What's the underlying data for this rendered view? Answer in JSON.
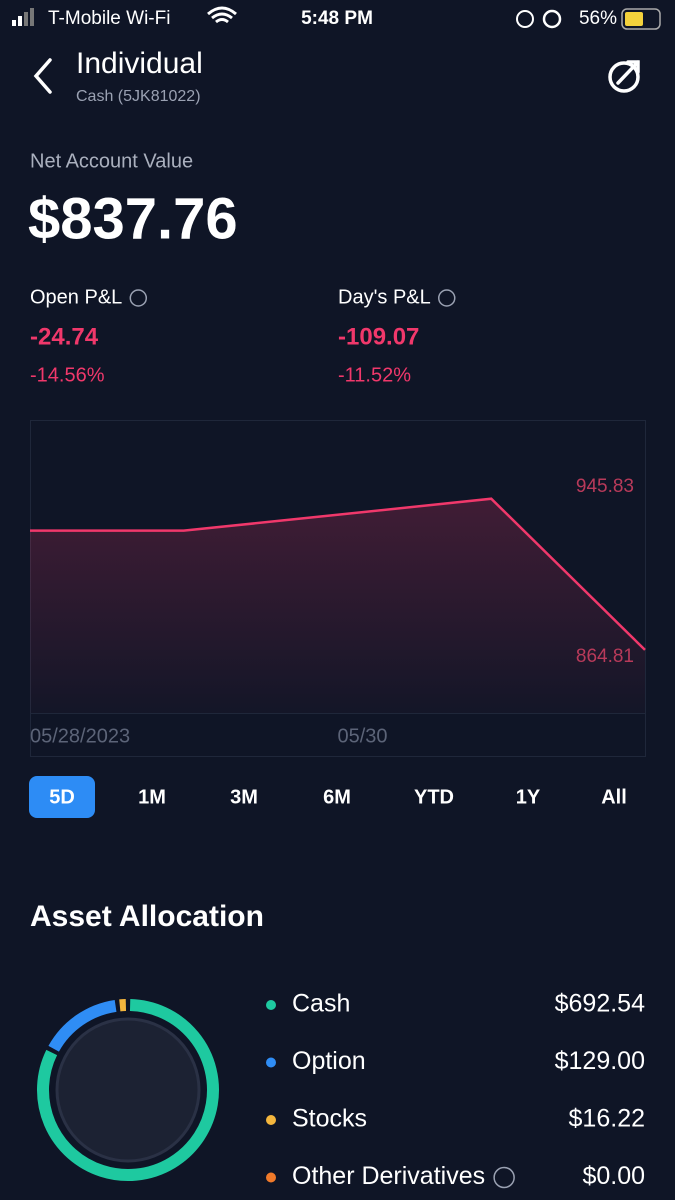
{
  "status_bar": {
    "carrier": "T-Mobile Wi-Fi",
    "time": "5:48 PM",
    "battery": "56%"
  },
  "header": {
    "title": "Individual",
    "subtitle": "Cash (5JK81022)"
  },
  "account": {
    "label": "Net Account Value",
    "value": "$837.76"
  },
  "pnl": [
    {
      "label": "Open P&L",
      "amount": "-24.74",
      "percent": "-14.56%"
    },
    {
      "label": "Day's P&L",
      "amount": "-109.07",
      "percent": "-11.52%"
    }
  ],
  "chart_data": [
    {
      "type": "line",
      "categories": [
        "05/28/2023",
        null,
        "05/30",
        null,
        null
      ],
      "values": [
        928.7,
        928.7,
        937.2,
        945.83,
        864.81
      ],
      "color": "#f0386b",
      "ylim": [
        831,
        988
      ]
    },
    {
      "type": "donut",
      "title": "Asset Allocation",
      "categories": [
        "Cash",
        "Option",
        "Stocks",
        "Other Derivatives"
      ],
      "values": [
        692.54,
        129.0,
        16.22,
        0.0
      ],
      "value_labels": [
        "$692.54",
        "$129.00",
        "$16.22",
        "$0.00"
      ],
      "colors": [
        "#1ec9a0",
        "#2f8df5",
        "#f4b63d",
        "#f07a2a"
      ]
    }
  ],
  "ranges": {
    "options": [
      "5D",
      "1M",
      "3M",
      "6M",
      "YTD",
      "1Y",
      "All"
    ],
    "active": 0
  }
}
